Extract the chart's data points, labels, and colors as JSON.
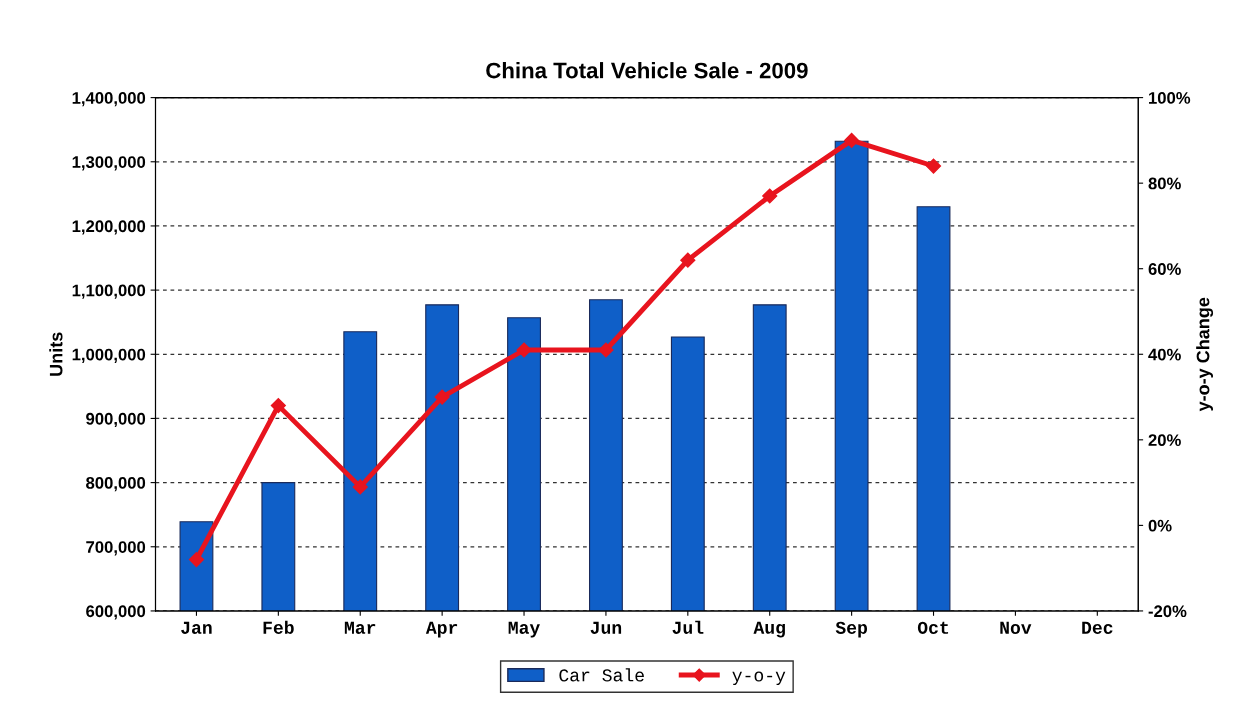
{
  "chart_data": {
    "type": "bar",
    "title": "China Total Vehicle Sale - 2009",
    "ylabel": "Units",
    "y2label": "y-o-y Change",
    "categories": [
      "Jan",
      "Feb",
      "Mar",
      "Apr",
      "May",
      "Jun",
      "Jul",
      "Aug",
      "Sep",
      "Oct",
      "Nov",
      "Dec"
    ],
    "series": [
      {
        "name": "Car Sale",
        "type": "bar",
        "color": "#0f5fc8",
        "values": [
          739000,
          800000,
          1035000,
          1077000,
          1057000,
          1085000,
          1027000,
          1077000,
          1332000,
          1230000,
          null,
          null
        ]
      },
      {
        "name": "y-o-y",
        "type": "line",
        "axis": "y2",
        "color": "#e8141e",
        "marker": "diamond",
        "values": [
          -8,
          28,
          9,
          30,
          41,
          41,
          62,
          77,
          90,
          84,
          null,
          null
        ]
      }
    ],
    "ylim": [
      600000,
      1400000
    ],
    "yticks": [
      {
        "value": 600000,
        "label": "600,000"
      },
      {
        "value": 700000,
        "label": "700,000"
      },
      {
        "value": 800000,
        "label": "800,000"
      },
      {
        "value": 900000,
        "label": "900,000"
      },
      {
        "value": 1000000,
        "label": "1,000,000"
      },
      {
        "value": 1100000,
        "label": "1,100,000"
      },
      {
        "value": 1200000,
        "label": "1,200,000"
      },
      {
        "value": 1300000,
        "label": "1,300,000"
      },
      {
        "value": 1400000,
        "label": "1,400,000"
      }
    ],
    "y2lim": [
      -20,
      100
    ],
    "y2ticks": [
      {
        "value": -20,
        "label": "-20%"
      },
      {
        "value": 0,
        "label": "0%"
      },
      {
        "value": 20,
        "label": "20%"
      },
      {
        "value": 40,
        "label": "40%"
      },
      {
        "value": 60,
        "label": "60%"
      },
      {
        "value": 80,
        "label": "80%"
      },
      {
        "value": 100,
        "label": "100%"
      }
    ],
    "grid": "y",
    "legend": "bottom"
  }
}
